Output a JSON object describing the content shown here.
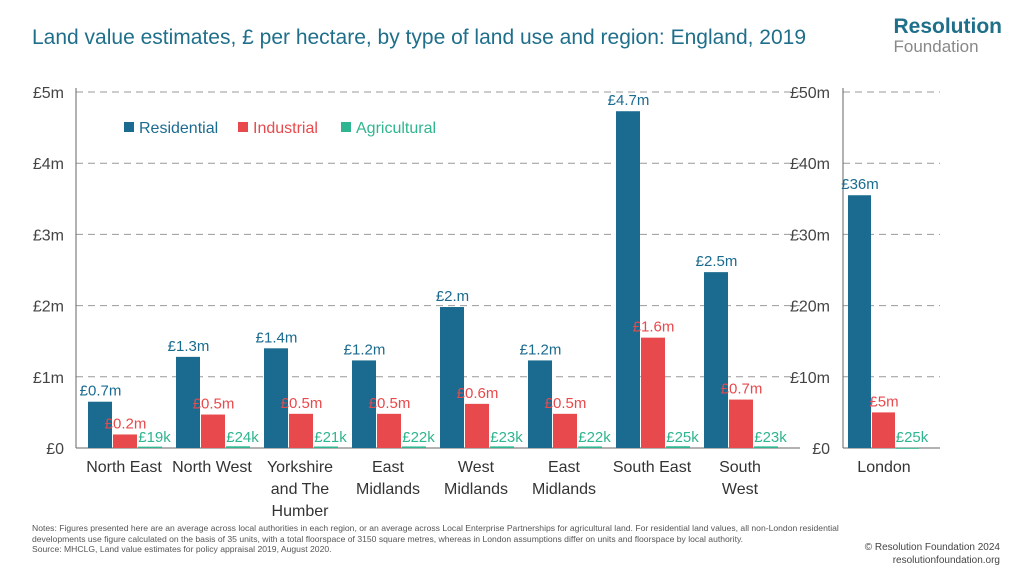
{
  "header": {
    "title": "Land value estimates, £ per hectare, by type of land use and region: England, 2019",
    "logo_line1": "Resolution",
    "logo_line2": "Foundation"
  },
  "footer": {
    "notes": "Notes: Figures presented here are an average across local authorities in each region, or an average across Local Enterprise Partnerships for agricultural land. For residential land values, all non-London residential developments use figure calculated on the basis of 35 units, with a total floorspace of 3150 square metres, whereas in London assumptions differ on units and floorspace by local authority.",
    "source": "Source: MHCLG, Land value estimates for policy appraisal 2019, August 2020.",
    "copyright": "© Resolution Foundation 2024",
    "website": "resolutionfoundation.org"
  },
  "colors": {
    "residential": "#1a6b8f",
    "industrial": "#e8494c",
    "agricultural": "#2fb58f",
    "title": "#1f6f8b",
    "grid": "#999999"
  },
  "chart_data": [
    {
      "type": "bar",
      "categories": [
        "North East",
        "North West",
        "Yorkshire and The Humber",
        "East Midlands",
        "West Midlands",
        "East Midlands",
        "South East",
        "South West"
      ],
      "category_lines": [
        [
          "North East"
        ],
        [
          "North West"
        ],
        [
          "Yorkshire",
          "and The",
          "Humber"
        ],
        [
          "East",
          "Midlands"
        ],
        [
          "West",
          "Midlands"
        ],
        [
          "East",
          "Midlands"
        ],
        [
          "South East"
        ],
        [
          "South",
          "West"
        ]
      ],
      "series": [
        {
          "name": "Residential",
          "values": [
            0.65,
            1.28,
            1.4,
            1.23,
            1.98,
            1.23,
            4.73,
            2.47
          ],
          "labels": [
            "£0.7m",
            "£1.3m",
            "£1.4m",
            "£1.2m",
            "£2.m",
            "£1.2m",
            "£4.7m",
            "£2.5m"
          ]
        },
        {
          "name": "Industrial",
          "values": [
            0.19,
            0.47,
            0.48,
            0.48,
            0.62,
            0.48,
            1.55,
            0.68
          ],
          "labels": [
            "£0.2m",
            "£0.5m",
            "£0.5m",
            "£0.5m",
            "£0.6m",
            "£0.5m",
            "£1.6m",
            "£0.7m"
          ]
        },
        {
          "name": "Agricultural",
          "values": [
            0.019,
            0.024,
            0.021,
            0.022,
            0.023,
            0.022,
            0.025,
            0.023
          ],
          "labels": [
            "£19k",
            "£24k",
            "£21k",
            "£22k",
            "£23k",
            "£22k",
            "£25k",
            "£23k"
          ]
        }
      ],
      "ylim": [
        0,
        5
      ],
      "yticks": [
        0,
        1,
        2,
        3,
        4,
        5
      ],
      "ytick_labels": [
        "£0",
        "£1m",
        "£2m",
        "£3m",
        "£4m",
        "£5m"
      ],
      "legend": "top-left"
    },
    {
      "type": "bar",
      "categories": [
        "London"
      ],
      "category_lines": [
        [
          "London"
        ]
      ],
      "series": [
        {
          "name": "Residential",
          "values": [
            35.5
          ],
          "labels": [
            "£36m"
          ]
        },
        {
          "name": "Industrial",
          "values": [
            5.0
          ],
          "labels": [
            "£5m"
          ]
        },
        {
          "name": "Agricultural",
          "values": [
            0.025
          ],
          "labels": [
            "£25k"
          ]
        }
      ],
      "ylim": [
        0,
        50
      ],
      "yticks": [
        0,
        10,
        20,
        30,
        40,
        50
      ],
      "ytick_labels": [
        "£0",
        "£10m",
        "£20m",
        "£30m",
        "£40m",
        "£50m"
      ]
    }
  ]
}
